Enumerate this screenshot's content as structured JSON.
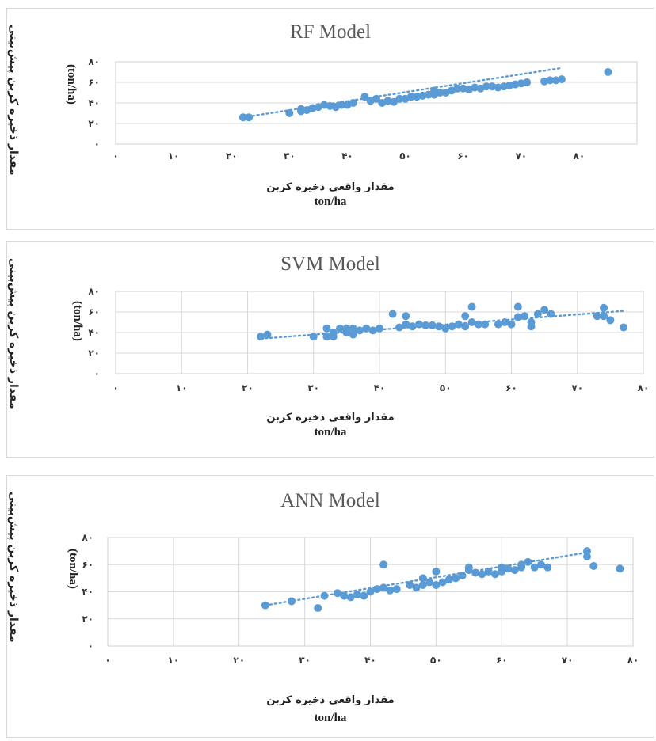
{
  "chart_data": [
    {
      "type": "scatter",
      "title": "RF Model",
      "ylabel": "مقدار ذخیره کربن پیش‌بینی",
      "ylabel_unit": "(ton/ha)",
      "xlabel": "مقدار واقعی ذخیره کربن",
      "xlabel_unit": "ton/ha",
      "xlim": [
        0,
        90
      ],
      "ylim": [
        0,
        80
      ],
      "x_tick_values": [
        0,
        10,
        20,
        30,
        40,
        50,
        60,
        70,
        80
      ],
      "x_tick_labels": [
        "۰",
        "۱۰",
        "۲۰",
        "۳۰",
        "۴۰",
        "۵۰",
        "۶۰",
        "۷۰",
        "۸۰"
      ],
      "y_tick_values": [
        0,
        20,
        40,
        60,
        80
      ],
      "y_tick_labels": [
        "۰",
        "۲۰",
        "۴۰",
        "۶۰",
        "۸۰"
      ],
      "grid": {
        "horizontal": true,
        "vertical": false
      },
      "color": "#5b9bd5",
      "trendline": {
        "x": [
          22,
          77
        ],
        "y": [
          26,
          74
        ]
      },
      "points": [
        [
          22,
          26
        ],
        [
          23,
          26
        ],
        [
          30,
          30
        ],
        [
          32,
          32
        ],
        [
          32,
          34
        ],
        [
          33,
          33
        ],
        [
          34,
          35
        ],
        [
          35,
          36
        ],
        [
          36,
          38
        ],
        [
          37,
          37
        ],
        [
          38,
          36
        ],
        [
          39,
          38
        ],
        [
          40,
          38
        ],
        [
          41,
          40
        ],
        [
          43,
          46
        ],
        [
          44,
          42
        ],
        [
          45,
          44
        ],
        [
          46,
          40
        ],
        [
          47,
          42
        ],
        [
          48,
          41
        ],
        [
          49,
          44
        ],
        [
          50,
          44
        ],
        [
          51,
          46
        ],
        [
          52,
          46
        ],
        [
          53,
          47
        ],
        [
          54,
          48
        ],
        [
          55,
          48
        ],
        [
          55,
          52
        ],
        [
          56,
          50
        ],
        [
          57,
          50
        ],
        [
          58,
          52
        ],
        [
          59,
          54
        ],
        [
          60,
          54
        ],
        [
          61,
          53
        ],
        [
          62,
          55
        ],
        [
          63,
          54
        ],
        [
          64,
          56
        ],
        [
          65,
          56
        ],
        [
          66,
          55
        ],
        [
          67,
          56
        ],
        [
          68,
          57
        ],
        [
          69,
          58
        ],
        [
          70,
          59
        ],
        [
          71,
          60
        ],
        [
          74,
          61
        ],
        [
          75,
          62
        ],
        [
          76,
          62
        ],
        [
          77,
          63
        ],
        [
          85,
          70
        ]
      ]
    },
    {
      "type": "scatter",
      "title": "SVM Model",
      "ylabel": "مقدار ذخیره کربن پیش‌بینی",
      "ylabel_unit": "(ton/ha)",
      "xlabel": "مقدار واقعی ذخیره کربن",
      "xlabel_unit": "ton/ha",
      "xlim": [
        0,
        80
      ],
      "ylim": [
        0,
        80
      ],
      "x_tick_values": [
        0,
        10,
        20,
        30,
        40,
        50,
        60,
        70,
        80
      ],
      "x_tick_labels": [
        "۰",
        "۱۰",
        "۲۰",
        "۳۰",
        "۴۰",
        "۵۰",
        "۶۰",
        "۷۰",
        "۸۰"
      ],
      "y_tick_values": [
        0,
        20,
        40,
        60,
        80
      ],
      "y_tick_labels": [
        "۰",
        "۲۰",
        "۴۰",
        "۶۰",
        "۸۰"
      ],
      "grid": {
        "horizontal": true,
        "vertical": true
      },
      "color": "#5b9bd5",
      "trendline": {
        "x": [
          22,
          77
        ],
        "y": [
          34,
          61
        ]
      },
      "points": [
        [
          22,
          36
        ],
        [
          23,
          38
        ],
        [
          30,
          36
        ],
        [
          32,
          36
        ],
        [
          32,
          44
        ],
        [
          33,
          40
        ],
        [
          33,
          36
        ],
        [
          34,
          44
        ],
        [
          35,
          40
        ],
        [
          35,
          44
        ],
        [
          36,
          38
        ],
        [
          36,
          44
        ],
        [
          37,
          42
        ],
        [
          38,
          44
        ],
        [
          39,
          42
        ],
        [
          40,
          44
        ],
        [
          42,
          58
        ],
        [
          43,
          45
        ],
        [
          44,
          56
        ],
        [
          44,
          48
        ],
        [
          45,
          46
        ],
        [
          46,
          48
        ],
        [
          47,
          47
        ],
        [
          48,
          47
        ],
        [
          49,
          46
        ],
        [
          50,
          44
        ],
        [
          51,
          46
        ],
        [
          52,
          48
        ],
        [
          53,
          46
        ],
        [
          53,
          56
        ],
        [
          54,
          50
        ],
        [
          54,
          65
        ],
        [
          55,
          48
        ],
        [
          56,
          48
        ],
        [
          58,
          48
        ],
        [
          59,
          50
        ],
        [
          60,
          48
        ],
        [
          61,
          55
        ],
        [
          61,
          65
        ],
        [
          62,
          56
        ],
        [
          63,
          50
        ],
        [
          63,
          46
        ],
        [
          64,
          58
        ],
        [
          65,
          62
        ],
        [
          66,
          58
        ],
        [
          73,
          56
        ],
        [
          74,
          64
        ],
        [
          74,
          56
        ],
        [
          75,
          52
        ],
        [
          77,
          45
        ]
      ]
    },
    {
      "type": "scatter",
      "title": "ANN Model",
      "ylabel": "مقدار ذخیره کربن پیش‌بینی",
      "ylabel_unit": "(ton/ha)",
      "xlabel": "مقدار واقعی ذخیره کربن",
      "xlabel_unit": "ton/ha",
      "xlim": [
        0,
        80
      ],
      "ylim": [
        0,
        80
      ],
      "x_tick_values": [
        0,
        10,
        20,
        30,
        40,
        50,
        60,
        70,
        80
      ],
      "x_tick_labels": [
        "۰",
        "۱۰",
        "۲۰",
        "۳۰",
        "۴۰",
        "۵۰",
        "۶۰",
        "۷۰",
        "۸۰"
      ],
      "y_tick_values": [
        0,
        20,
        40,
        60,
        80
      ],
      "y_tick_labels": [
        "۰",
        "۲۰",
        "۴۰",
        "۶۰",
        "۸۰"
      ],
      "grid": {
        "horizontal": true,
        "vertical": true
      },
      "color": "#5b9bd5",
      "trendline": {
        "x": [
          24,
          73
        ],
        "y": [
          30,
          69
        ]
      },
      "points": [
        [
          24,
          30
        ],
        [
          28,
          33
        ],
        [
          32,
          28
        ],
        [
          33,
          37
        ],
        [
          35,
          39
        ],
        [
          36,
          37
        ],
        [
          37,
          36
        ],
        [
          38,
          38
        ],
        [
          39,
          37
        ],
        [
          40,
          40
        ],
        [
          41,
          42
        ],
        [
          42,
          43
        ],
        [
          42,
          60
        ],
        [
          43,
          41
        ],
        [
          44,
          42
        ],
        [
          46,
          45
        ],
        [
          47,
          43
        ],
        [
          48,
          45
        ],
        [
          48,
          50
        ],
        [
          49,
          47
        ],
        [
          50,
          45
        ],
        [
          50,
          55
        ],
        [
          51,
          47
        ],
        [
          52,
          49
        ],
        [
          53,
          50
        ],
        [
          54,
          52
        ],
        [
          55,
          56
        ],
        [
          55,
          58
        ],
        [
          56,
          54
        ],
        [
          57,
          53
        ],
        [
          58,
          55
        ],
        [
          59,
          53
        ],
        [
          60,
          55
        ],
        [
          60,
          58
        ],
        [
          61,
          57
        ],
        [
          62,
          56
        ],
        [
          63,
          60
        ],
        [
          63,
          58
        ],
        [
          64,
          62
        ],
        [
          65,
          58
        ],
        [
          66,
          60
        ],
        [
          67,
          58
        ],
        [
          73,
          66
        ],
        [
          73,
          70
        ],
        [
          74,
          59
        ],
        [
          78,
          57
        ]
      ]
    }
  ]
}
